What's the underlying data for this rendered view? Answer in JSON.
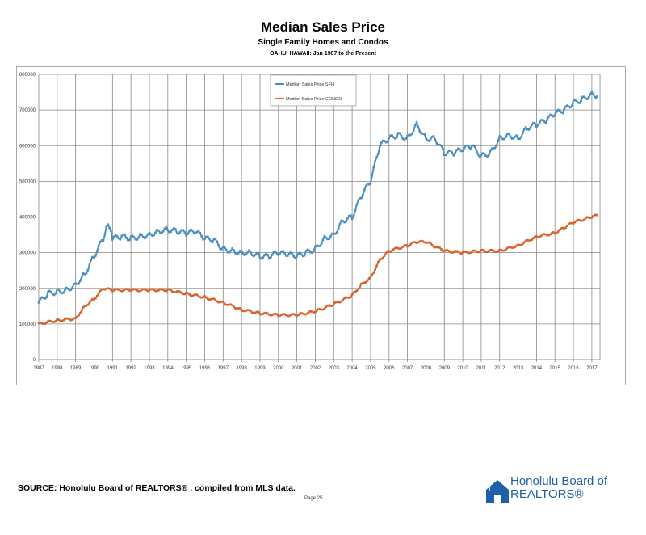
{
  "header": {
    "title": "Median Sales Price",
    "subtitle": "Single Family Homes and Condos",
    "subsubtitle": "OAHU, HAWAII: Jan 1987 to the Present"
  },
  "footer": {
    "source": "SOURCE:  Honolulu Board of REALTORS® , compiled from MLS data.",
    "page": "Page 25",
    "logo_text": "Honolulu Board of REALTORS®"
  },
  "chart_data": {
    "type": "line",
    "title": "Median Sales Price",
    "xlim": [
      1987,
      2017.4
    ],
    "ylim": [
      0,
      800000
    ],
    "yticks": [
      0,
      100000,
      200000,
      300000,
      400000,
      500000,
      600000,
      700000,
      800000
    ],
    "xticks": [
      "1987",
      "1988",
      "1989",
      "1990",
      "1991",
      "1992",
      "1993",
      "1994",
      "1995",
      "1996",
      "1997",
      "1998",
      "1999",
      "2000",
      "2001",
      "2002",
      "2003",
      "2004",
      "2005",
      "2006",
      "2007",
      "2008",
      "2009",
      "2010",
      "2011",
      "2012",
      "2013",
      "2014",
      "2015",
      "2016",
      "2017"
    ],
    "grid": true,
    "legend": "top-center",
    "series": [
      {
        "name": "Median Sales Price SFH",
        "color": "#4a8fbf",
        "x": [
          1987,
          1987.5,
          1988,
          1988.5,
          1989,
          1989.5,
          1990,
          1990.5,
          1990.75,
          1991,
          1991.5,
          1992,
          1992.5,
          1993,
          1993.5,
          1994,
          1994.5,
          1995,
          1995.5,
          1996,
          1996.5,
          1997,
          1997.5,
          1998,
          1998.5,
          1999,
          1999.5,
          2000,
          2000.5,
          2001,
          2001.5,
          2002,
          2002.5,
          2003,
          2003.5,
          2004,
          2004.5,
          2005,
          2005.5,
          2006,
          2006.5,
          2007,
          2007.5,
          2008,
          2008.5,
          2009,
          2009.5,
          2010,
          2010.5,
          2011,
          2011.5,
          2012,
          2012.5,
          2013,
          2013.5,
          2014,
          2014.5,
          2015,
          2015.5,
          2016,
          2016.5,
          2017,
          2017.3
        ],
        "values": [
          160000,
          185000,
          190000,
          195000,
          210000,
          240000,
          290000,
          340000,
          385000,
          340000,
          345000,
          340000,
          345000,
          350000,
          360000,
          365000,
          360000,
          355000,
          360000,
          340000,
          335000,
          310000,
          305000,
          300000,
          300000,
          290000,
          290000,
          300000,
          295000,
          290000,
          300000,
          310000,
          340000,
          350000,
          390000,
          400000,
          460000,
          500000,
          600000,
          620000,
          630000,
          620000,
          660000,
          620000,
          620000,
          580000,
          580000,
          590000,
          600000,
          570000,
          580000,
          620000,
          630000,
          620000,
          650000,
          660000,
          670000,
          690000,
          700000,
          720000,
          730000,
          745000,
          740000
        ]
      },
      {
        "name": "Median Sales Price CONDO",
        "color": "#d9632b",
        "x": [
          1987,
          1988,
          1989,
          1989.5,
          1990,
          1990.5,
          1991,
          1992,
          1993,
          1994,
          1995,
          1996,
          1997,
          1998,
          1999,
          2000,
          2001,
          2002,
          2003,
          2004,
          2004.5,
          2005,
          2005.5,
          2006,
          2007,
          2007.5,
          2008,
          2009,
          2010,
          2011,
          2012,
          2013,
          2014,
          2015,
          2015.5,
          2016,
          2017,
          2017.3
        ],
        "values": [
          100000,
          110000,
          115000,
          150000,
          170000,
          200000,
          195000,
          195000,
          195000,
          195000,
          185000,
          175000,
          160000,
          140000,
          130000,
          125000,
          125000,
          135000,
          155000,
          180000,
          210000,
          230000,
          280000,
          305000,
          320000,
          330000,
          330000,
          305000,
          300000,
          305000,
          305000,
          320000,
          345000,
          355000,
          370000,
          385000,
          400000,
          405000
        ]
      }
    ]
  }
}
